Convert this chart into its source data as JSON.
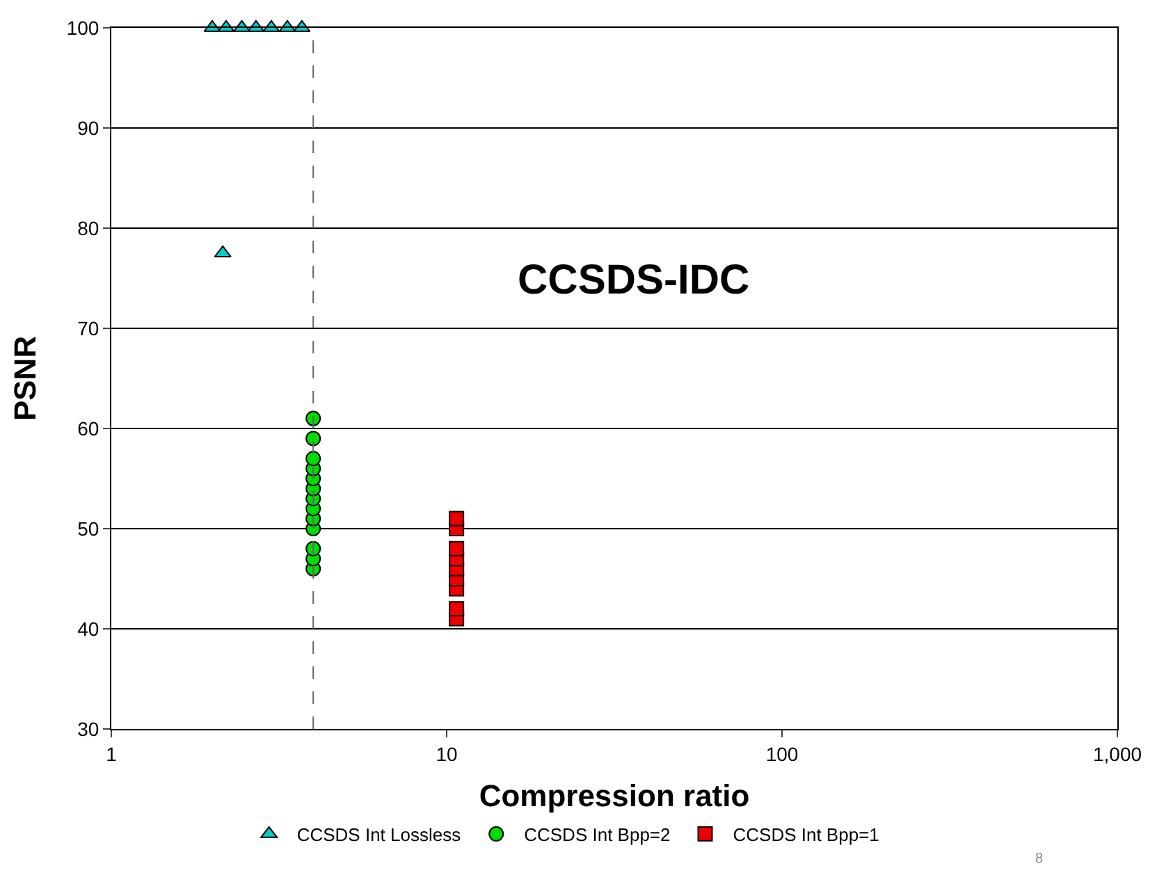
{
  "chart_data": {
    "type": "scatter",
    "xlabel": "Compression ratio",
    "ylabel": "PSNR",
    "log": "x",
    "xlim": [
      1,
      1000
    ],
    "xticks": [
      1,
      10,
      100,
      {
        "value": 1000,
        "label": "1,000"
      }
    ],
    "ylim": [
      30,
      100
    ],
    "yticks": [
      30,
      40,
      50,
      60,
      70,
      80,
      90,
      100
    ],
    "grid": "y",
    "legend": "bottom",
    "series": [
      {
        "name": "CCSDS Int Lossless",
        "color": "#00cccc",
        "marker": "triangle",
        "x": [
          2.0,
          2.15,
          2.2,
          2.45,
          2.7,
          3.0,
          3.35,
          3.7
        ],
        "values": [
          100,
          77.5,
          100,
          100,
          100,
          100,
          100,
          100
        ]
      },
      {
        "name": "CCSDS Int Bpp=2",
        "color": "#00dd00",
        "marker": "circle",
        "x": [
          4,
          4,
          4,
          4,
          4,
          4,
          4,
          4,
          4,
          4,
          4,
          4,
          4
        ],
        "values": [
          46,
          47,
          48,
          50,
          51,
          52,
          53,
          54,
          55,
          56,
          57,
          59,
          61
        ]
      },
      {
        "name": "CCSDS Int Bpp=1",
        "color": "#ee0000",
        "marker": "square",
        "x": [
          10.7,
          10.7,
          10.7,
          10.7,
          10.7,
          10.7,
          10.7,
          10.7,
          10.7
        ],
        "values": [
          41,
          42,
          44,
          45,
          46,
          47,
          48,
          50,
          51
        ]
      }
    ],
    "ref_lines": [
      {
        "axis": "x",
        "value": 4,
        "color": "#666666",
        "line_style": "dashed"
      }
    ],
    "annotations": [
      "CCSDS-IDC",
      "8"
    ]
  }
}
